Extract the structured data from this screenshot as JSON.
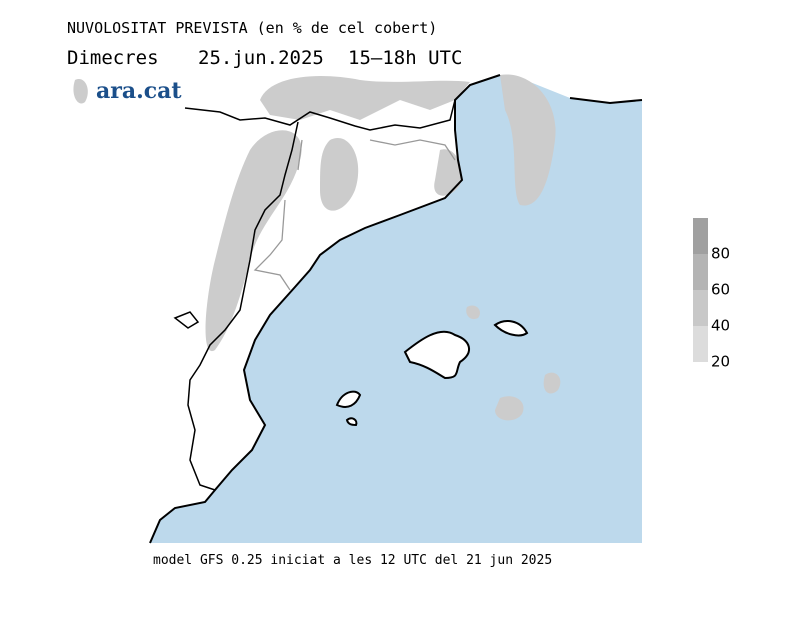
{
  "header": {
    "title": "NUVOLOSITAT PREVISTA (en % de cel cobert)",
    "day": "Dimecres",
    "date": "25.jun.2025",
    "time": "15–18h UTC"
  },
  "logo": "ara.cat",
  "legend": {
    "levels": [
      {
        "value": 20,
        "color": "#dcdcdc"
      },
      {
        "value": 40,
        "color": "#c8c8c8"
      },
      {
        "value": 60,
        "color": "#b4b4b4"
      },
      {
        "value": 80,
        "color": "#a0a0a0"
      }
    ]
  },
  "footer": "model GFS 0.25 iniciat a les 12 UTC del 21 jun 2025"
}
